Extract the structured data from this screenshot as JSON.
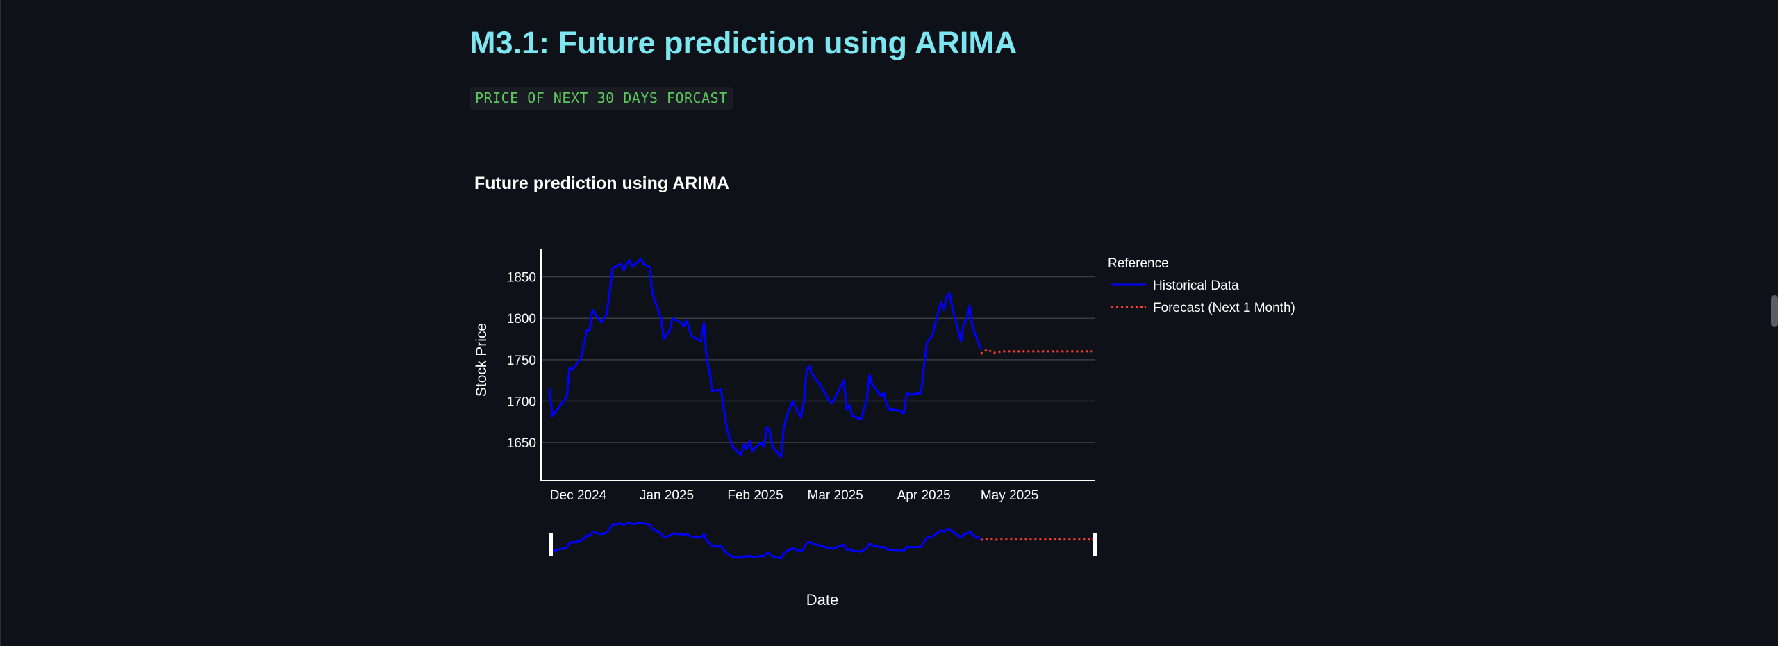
{
  "page": {
    "title": "M3.1: Future prediction using ARIMA",
    "code_label": "PRICE OF NEXT 30 DAYS FORCAST"
  },
  "colors": {
    "background": "#0e1117",
    "title": "#7de6f0",
    "code_text": "#5cc85e",
    "historical": "#0000ff",
    "forecast": "#ff3b30",
    "grid": "#3a3d44",
    "text": "#ffffff"
  },
  "chart_data": {
    "type": "line",
    "title": "Future prediction using ARIMA",
    "xlabel": "Date",
    "ylabel": "Stock Price",
    "grid": true,
    "legend_title": "Reference",
    "legend_position": "right",
    "range_slider": true,
    "xlim": [
      "2024-11-18",
      "2025-05-31"
    ],
    "ylim": [
      1604,
      1884
    ],
    "x_ticks": [
      {
        "date": "2024-12-01",
        "label": "Dec 2024"
      },
      {
        "date": "2025-01-01",
        "label": "Jan 2025"
      },
      {
        "date": "2025-02-01",
        "label": "Feb 2025"
      },
      {
        "date": "2025-03-01",
        "label": "Mar 2025"
      },
      {
        "date": "2025-04-01",
        "label": "Apr 2025"
      },
      {
        "date": "2025-05-01",
        "label": "May 2025"
      }
    ],
    "y_ticks": [
      1650,
      1700,
      1750,
      1800,
      1850
    ],
    "series": [
      {
        "name": "Historical Data",
        "color": "#0000ff",
        "dash": "solid",
        "points": [
          [
            "2024-11-21",
            1715
          ],
          [
            "2024-11-22",
            1682
          ],
          [
            "2024-11-25",
            1696
          ],
          [
            "2024-11-26",
            1700
          ],
          [
            "2024-11-27",
            1705
          ],
          [
            "2024-11-28",
            1740
          ],
          [
            "2024-11-29",
            1738
          ],
          [
            "2024-12-02",
            1752
          ],
          [
            "2024-12-03",
            1768
          ],
          [
            "2024-12-04",
            1786
          ],
          [
            "2024-12-05",
            1785
          ],
          [
            "2024-12-06",
            1810
          ],
          [
            "2024-12-09",
            1795
          ],
          [
            "2024-12-10",
            1800
          ],
          [
            "2024-12-11",
            1805
          ],
          [
            "2024-12-12",
            1830
          ],
          [
            "2024-12-13",
            1860
          ],
          [
            "2024-12-16",
            1866
          ],
          [
            "2024-12-17",
            1858
          ],
          [
            "2024-12-18",
            1866
          ],
          [
            "2024-12-19",
            1870
          ],
          [
            "2024-12-20",
            1862
          ],
          [
            "2024-12-23",
            1872
          ],
          [
            "2024-12-24",
            1865
          ],
          [
            "2024-12-26",
            1862
          ],
          [
            "2024-12-27",
            1830
          ],
          [
            "2024-12-30",
            1800
          ],
          [
            "2024-12-31",
            1775
          ],
          [
            "2025-01-02",
            1785
          ],
          [
            "2025-01-03",
            1800
          ],
          [
            "2025-01-06",
            1795
          ],
          [
            "2025-01-07",
            1790
          ],
          [
            "2025-01-08",
            1798
          ],
          [
            "2025-01-09",
            1785
          ],
          [
            "2025-01-10",
            1778
          ],
          [
            "2025-01-13",
            1772
          ],
          [
            "2025-01-14",
            1795
          ],
          [
            "2025-01-15",
            1750
          ],
          [
            "2025-01-16",
            1735
          ],
          [
            "2025-01-17",
            1712
          ],
          [
            "2025-01-20",
            1714
          ],
          [
            "2025-01-21",
            1690
          ],
          [
            "2025-01-22",
            1668
          ],
          [
            "2025-01-23",
            1655
          ],
          [
            "2025-01-24",
            1645
          ],
          [
            "2025-01-27",
            1635
          ],
          [
            "2025-01-28",
            1648
          ],
          [
            "2025-01-29",
            1642
          ],
          [
            "2025-01-30",
            1652
          ],
          [
            "2025-01-31",
            1640
          ],
          [
            "2025-02-03",
            1650
          ],
          [
            "2025-02-04",
            1645
          ],
          [
            "2025-02-05",
            1668
          ],
          [
            "2025-02-06",
            1665
          ],
          [
            "2025-02-07",
            1645
          ],
          [
            "2025-02-10",
            1632
          ],
          [
            "2025-02-11",
            1668
          ],
          [
            "2025-02-12",
            1682
          ],
          [
            "2025-02-13",
            1690
          ],
          [
            "2025-02-14",
            1700
          ],
          [
            "2025-02-17",
            1680
          ],
          [
            "2025-02-18",
            1698
          ],
          [
            "2025-02-19",
            1738
          ],
          [
            "2025-02-20",
            1742
          ],
          [
            "2025-02-21",
            1732
          ],
          [
            "2025-02-24",
            1718
          ],
          [
            "2025-02-25",
            1712
          ],
          [
            "2025-02-26",
            1705
          ],
          [
            "2025-02-27",
            1700
          ],
          [
            "2025-02-28",
            1698
          ],
          [
            "2025-03-03",
            1718
          ],
          [
            "2025-03-04",
            1725
          ],
          [
            "2025-03-05",
            1690
          ],
          [
            "2025-03-06",
            1695
          ],
          [
            "2025-03-07",
            1682
          ],
          [
            "2025-03-10",
            1678
          ],
          [
            "2025-03-11",
            1690
          ],
          [
            "2025-03-12",
            1700
          ],
          [
            "2025-03-13",
            1732
          ],
          [
            "2025-03-14",
            1720
          ],
          [
            "2025-03-17",
            1706
          ],
          [
            "2025-03-18",
            1710
          ],
          [
            "2025-03-19",
            1695
          ],
          [
            "2025-03-20",
            1690
          ],
          [
            "2025-03-21",
            1690
          ],
          [
            "2025-03-24",
            1688
          ],
          [
            "2025-03-25",
            1685
          ],
          [
            "2025-03-26",
            1710
          ],
          [
            "2025-03-27",
            1708
          ],
          [
            "2025-03-28",
            1708
          ],
          [
            "2025-03-31",
            1710
          ],
          [
            "2025-04-01",
            1740
          ],
          [
            "2025-04-02",
            1770
          ],
          [
            "2025-04-03",
            1775
          ],
          [
            "2025-04-04",
            1780
          ],
          [
            "2025-04-07",
            1820
          ],
          [
            "2025-04-08",
            1810
          ],
          [
            "2025-04-09",
            1826
          ],
          [
            "2025-04-10",
            1830
          ],
          [
            "2025-04-11",
            1812
          ],
          [
            "2025-04-14",
            1772
          ],
          [
            "2025-04-15",
            1795
          ],
          [
            "2025-04-16",
            1798
          ],
          [
            "2025-04-17",
            1815
          ],
          [
            "2025-04-18",
            1790
          ],
          [
            "2025-04-21",
            1762
          ]
        ]
      },
      {
        "name": "Forecast (Next 1 Month)",
        "color": "#ff3b30",
        "dash": "dot",
        "points": [
          [
            "2025-04-21",
            1757
          ],
          [
            "2025-04-23",
            1762
          ],
          [
            "2025-04-26",
            1758
          ],
          [
            "2025-04-28",
            1760
          ],
          [
            "2025-05-01",
            1760
          ],
          [
            "2025-05-07",
            1760
          ],
          [
            "2025-05-14",
            1760
          ],
          [
            "2025-05-21",
            1760
          ],
          [
            "2025-05-31",
            1760
          ]
        ]
      }
    ]
  }
}
